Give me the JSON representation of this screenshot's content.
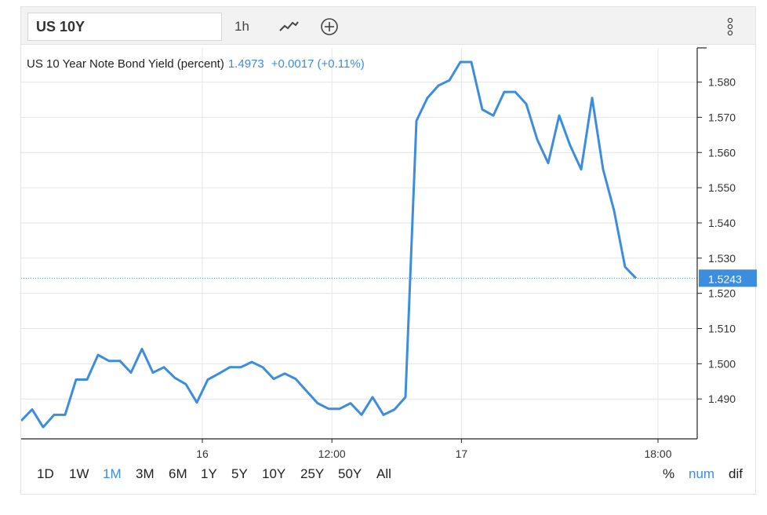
{
  "toolbar": {
    "symbol": "US 10Y",
    "interval": "1h",
    "chart_type_icon": "line-chart-icon",
    "add_icon": "plus-circle-icon",
    "menu_icon": "vertical-dots-icon"
  },
  "legend": {
    "name": "US 10 Year Note Bond Yield (percent)",
    "value": "1.4973",
    "change": "+0.0017 (+0.11%)"
  },
  "ranges": [
    "1D",
    "1W",
    "1M",
    "3M",
    "6M",
    "1Y",
    "5Y",
    "10Y",
    "25Y",
    "50Y",
    "All"
  ],
  "active_range": "1M",
  "modes": [
    "%",
    "num",
    "dif"
  ],
  "active_mode": "num",
  "colors": {
    "line": "#3c8dde",
    "price_tag": "#3c8dde",
    "grid": "#e6e6e6",
    "axis": "#222222"
  },
  "chart_data": {
    "type": "line",
    "title": "US 10 Year Note Bond Yield (percent)",
    "xlabel": "",
    "ylabel": "",
    "ylim": [
      1.4809,
      1.5857
    ],
    "y_ticks": [
      "1.490",
      "1.500",
      "1.510",
      "1.520",
      "1.530",
      "1.540",
      "1.550",
      "1.560",
      "1.570",
      "1.580"
    ],
    "x_ticks": [
      "16",
      "12:00",
      "17",
      "18:00"
    ],
    "x_tick_index": [
      16.5,
      28.3,
      40.1,
      58.0
    ],
    "last_price": 1.5243,
    "last_price_label": "1.5243",
    "grid": true,
    "series": [
      {
        "values": [
          1.4838,
          1.487,
          1.482,
          1.4855,
          1.4855,
          1.4955,
          1.4955,
          1.5025,
          1.5008,
          1.5008,
          1.4975,
          1.5042,
          1.4975,
          1.499,
          1.496,
          1.4942,
          1.489,
          1.4955,
          1.4972,
          1.499,
          1.499,
          1.5005,
          1.499,
          1.4957,
          1.4972,
          1.4957,
          1.4922,
          1.4888,
          1.4872,
          1.4872,
          1.4888,
          1.4855,
          1.4905,
          1.4855,
          1.487,
          1.4905,
          1.569,
          1.5755,
          1.579,
          1.5805,
          1.5857,
          1.5857,
          1.5722,
          1.5705,
          1.5772,
          1.5772,
          1.5738,
          1.5637,
          1.557,
          1.5705,
          1.562,
          1.5552,
          1.5755,
          1.5552,
          1.5435,
          1.5275,
          1.5243
        ]
      }
    ]
  }
}
